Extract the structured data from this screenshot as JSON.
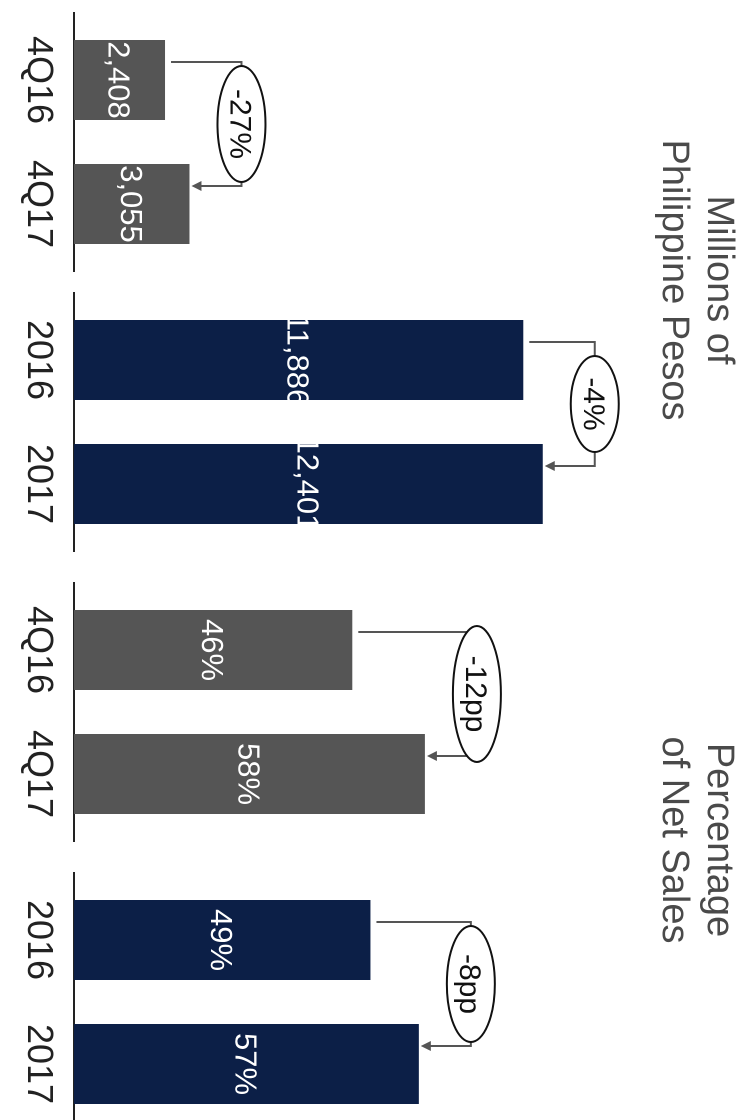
{
  "chart_data": [
    {
      "type": "bar",
      "title": "Millions of Philippine Pesos",
      "title_lines": [
        "Millions of",
        "Philippine Pesos"
      ],
      "unit": "Millions of Philippine Pesos",
      "groups": [
        {
          "categories": [
            "4Q16",
            "4Q17"
          ],
          "values": [
            2408,
            3055
          ],
          "value_labels": [
            "2,408",
            "3,055"
          ],
          "change_label": "-27%",
          "color": "#555555"
        },
        {
          "categories": [
            "2016",
            "2017"
          ],
          "values": [
            11886,
            12401
          ],
          "value_labels": [
            "11,886",
            "12,401"
          ],
          "change_label": "-4%",
          "color": "#0c1f47"
        }
      ]
    },
    {
      "type": "bar",
      "title": "Percentage of Net Sales",
      "title_lines": [
        "Percentage",
        "of Net Sales"
      ],
      "unit": "%",
      "groups": [
        {
          "categories": [
            "4Q16",
            "4Q17"
          ],
          "values": [
            46,
            58
          ],
          "value_labels": [
            "46%",
            "58%"
          ],
          "change_label": "-12pp",
          "color": "#555555"
        },
        {
          "categories": [
            "2016",
            "2017"
          ],
          "values": [
            49,
            57
          ],
          "value_labels": [
            "49%",
            "57%"
          ],
          "change_label": "-8pp",
          "color": "#0c1f47"
        }
      ]
    }
  ]
}
